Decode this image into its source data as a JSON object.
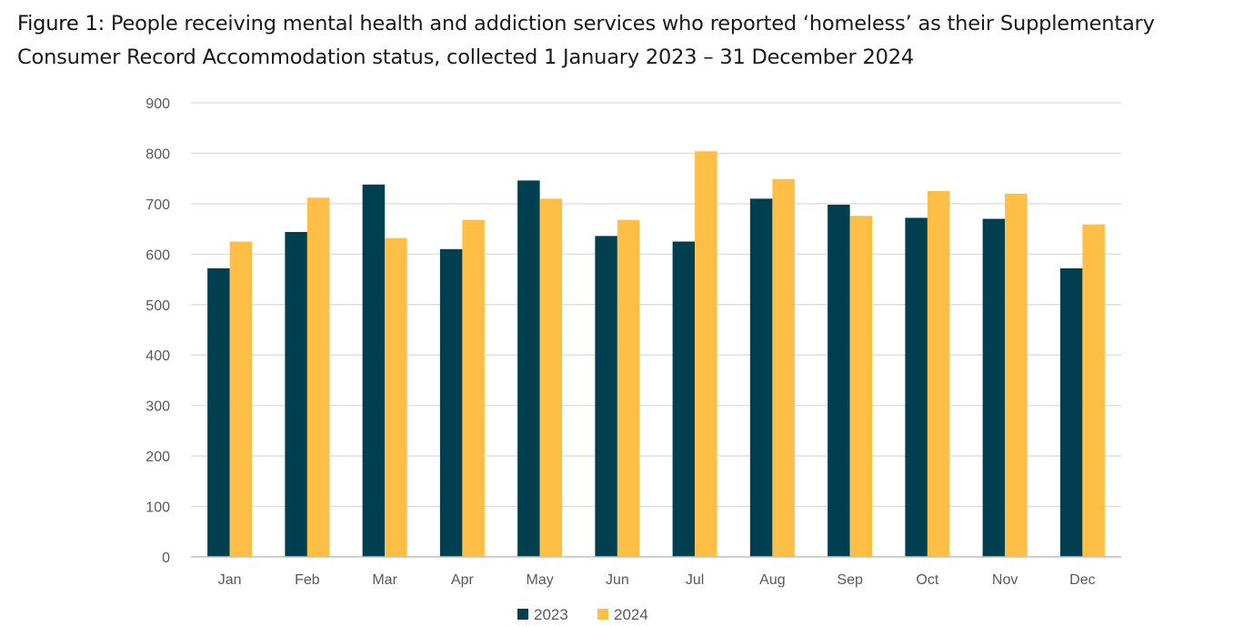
{
  "caption": {
    "label": "Figure 1:",
    "text": "People receiving mental health and addiction services who reported ‘homeless’ as their Supplementary Consumer Record Accommodation status, collected 1 January 2023 – 31 December 2024"
  },
  "chart_data": {
    "type": "bar",
    "categories": [
      "Jan",
      "Feb",
      "Mar",
      "Apr",
      "May",
      "Jun",
      "Jul",
      "Aug",
      "Sep",
      "Oct",
      "Nov",
      "Dec"
    ],
    "series": [
      {
        "name": "2023",
        "color": "#003f50",
        "values": [
          572,
          644,
          738,
          610,
          746,
          636,
          625,
          710,
          698,
          672,
          670,
          572
        ]
      },
      {
        "name": "2024",
        "color": "#ffbf47",
        "values": [
          625,
          712,
          632,
          668,
          710,
          668,
          804,
          749,
          676,
          725,
          720,
          659
        ]
      }
    ],
    "ylim": [
      0,
      900
    ],
    "yticks": [
      0,
      100,
      200,
      300,
      400,
      500,
      600,
      700,
      800,
      900
    ],
    "ytick_labels": [
      "0",
      "100",
      "200",
      "300",
      "400",
      "500",
      "600",
      "700",
      "800",
      "900"
    ],
    "grid": true,
    "legend": "bottom-center",
    "gridline_color": "#d9d9d9",
    "axis_color": "#bfbfbf"
  }
}
